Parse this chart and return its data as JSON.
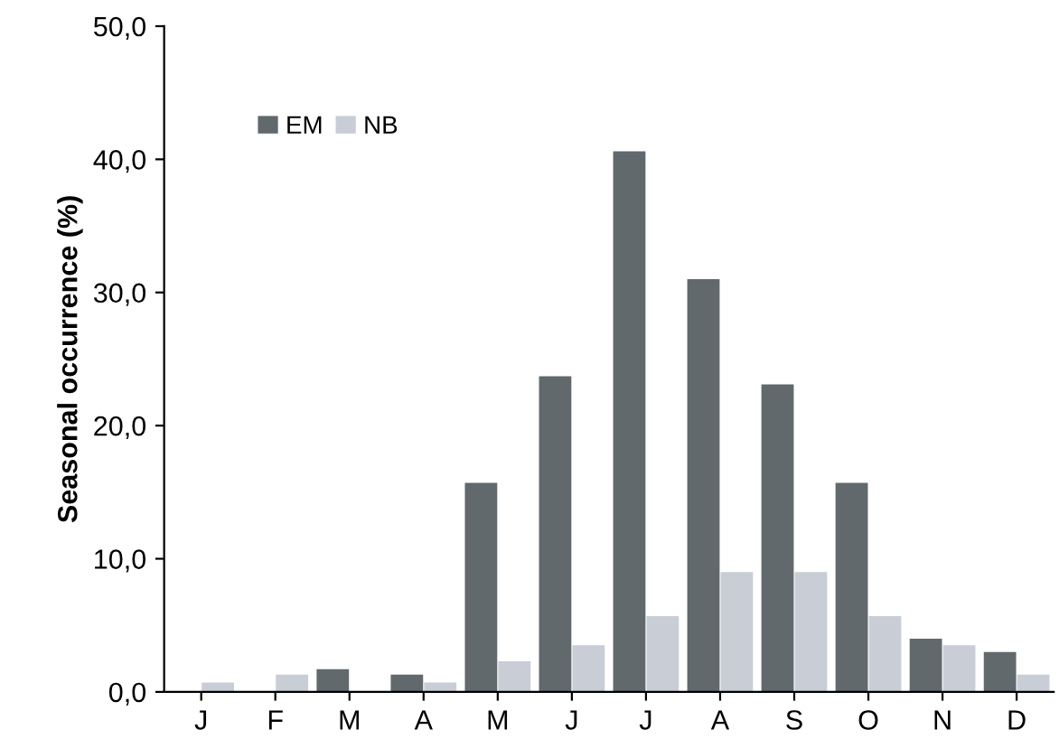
{
  "chart_data": {
    "type": "bar",
    "ylabel": "Seasonal occurrence (%)",
    "categories": [
      "J",
      "F",
      "M",
      "A",
      "M",
      "J",
      "J",
      "A",
      "S",
      "O",
      "N",
      "D"
    ],
    "series": [
      {
        "name": "EM",
        "color": "#62696d",
        "values": [
          0,
          0,
          1.7,
          1.3,
          15.7,
          23.7,
          40.6,
          31.0,
          23.1,
          15.7,
          4.0,
          3.0
        ]
      },
      {
        "name": "NB",
        "color": "#c9cdd6",
        "values": [
          0.7,
          1.3,
          0,
          0.7,
          2.3,
          3.5,
          5.7,
          9.0,
          9.0,
          5.7,
          3.5,
          1.3
        ]
      }
    ],
    "ylim": [
      0,
      50
    ],
    "yticks": [
      {
        "value": 0,
        "label": "0,0"
      },
      {
        "value": 10,
        "label": "10,0"
      },
      {
        "value": 20,
        "label": "20,0"
      },
      {
        "value": 30,
        "label": "30,0"
      },
      {
        "value": 40,
        "label": "40,0"
      },
      {
        "value": 50,
        "label": "50,0"
      }
    ],
    "legend": "top left",
    "grid": false
  }
}
